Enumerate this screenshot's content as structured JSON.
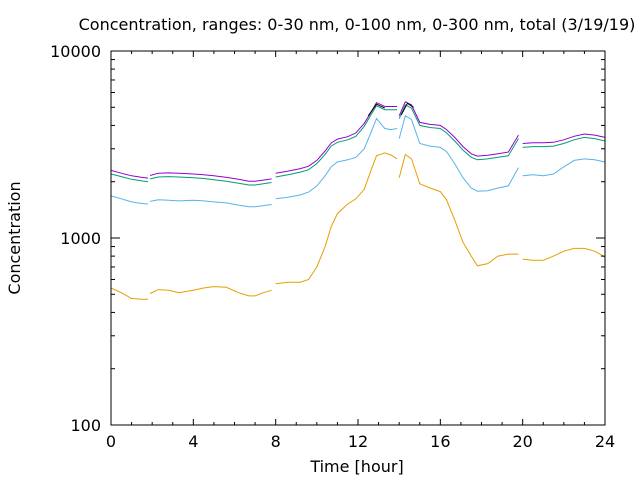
{
  "chart_data": {
    "type": "line",
    "title": "Concentration, ranges: 0-30 nm, 0-100 nm, 0-300 nm, total (3/19/19)",
    "xlabel": "Time [hour]",
    "ylabel": "Concentration",
    "xlim": [
      0,
      24
    ],
    "ylim": [
      100,
      10000
    ],
    "yscale": "log",
    "grid": false,
    "legend": "none",
    "x_ticks": [
      0,
      4,
      8,
      12,
      16,
      20,
      24
    ],
    "x_tick_labels": [
      "0",
      "4",
      "8",
      "12",
      "16",
      "20",
      "24"
    ],
    "y_ticks": [
      100,
      1000,
      10000
    ],
    "y_tick_labels": [
      "100",
      "1000",
      "10000"
    ],
    "series": [
      {
        "color": "#e69f00",
        "segments": [
          [
            [
              0,
              540
            ],
            [
              0.5,
              510
            ],
            [
              1,
              475
            ],
            [
              1.5,
              470
            ],
            [
              1.8,
              470
            ]
          ],
          [
            [
              1.9,
              505
            ],
            [
              2.3,
              530
            ],
            [
              2.8,
              525
            ],
            [
              3.3,
              510
            ],
            [
              4,
              525
            ],
            [
              4.5,
              540
            ],
            [
              5,
              550
            ],
            [
              5.6,
              545
            ],
            [
              6.2,
              510
            ],
            [
              6.7,
              490
            ],
            [
              7,
              490
            ],
            [
              7.4,
              510
            ],
            [
              7.8,
              525
            ]
          ],
          [
            [
              8,
              570
            ],
            [
              8.6,
              580
            ],
            [
              9.2,
              580
            ],
            [
              9.6,
              600
            ],
            [
              10,
              700
            ],
            [
              10.4,
              900
            ],
            [
              10.7,
              1150
            ],
            [
              11,
              1350
            ],
            [
              11.5,
              1520
            ],
            [
              11.9,
              1620
            ],
            [
              12.3,
              1820
            ],
            [
              12.6,
              2250
            ],
            [
              12.9,
              2750
            ],
            [
              13.3,
              2850
            ],
            [
              13.6,
              2780
            ],
            [
              13.9,
              2650
            ]
          ],
          [
            [
              14,
              2100
            ],
            [
              14.3,
              2800
            ],
            [
              14.6,
              2650
            ],
            [
              15,
              1950
            ],
            [
              15.5,
              1850
            ],
            [
              16,
              1770
            ],
            [
              16.3,
              1600
            ],
            [
              16.7,
              1250
            ],
            [
              17.1,
              950
            ],
            [
              17.5,
              800
            ],
            [
              17.8,
              710
            ],
            [
              18.3,
              730
            ],
            [
              18.8,
              800
            ],
            [
              19.3,
              820
            ],
            [
              19.8,
              820
            ]
          ],
          [
            [
              20,
              770
            ],
            [
              20.5,
              760
            ],
            [
              21,
              760
            ],
            [
              21.5,
              800
            ],
            [
              22,
              850
            ],
            [
              22.5,
              880
            ],
            [
              23,
              880
            ],
            [
              23.5,
              850
            ],
            [
              24,
              790
            ]
          ]
        ]
      },
      {
        "color": "#56b4e9",
        "segments": [
          [
            [
              0,
              1680
            ],
            [
              0.5,
              1620
            ],
            [
              1,
              1560
            ],
            [
              1.5,
              1530
            ],
            [
              1.8,
              1520
            ]
          ],
          [
            [
              1.9,
              1570
            ],
            [
              2.3,
              1600
            ],
            [
              2.8,
              1590
            ],
            [
              3.3,
              1580
            ],
            [
              4,
              1590
            ],
            [
              4.5,
              1580
            ],
            [
              5,
              1560
            ],
            [
              5.6,
              1540
            ],
            [
              6.2,
              1500
            ],
            [
              6.7,
              1470
            ],
            [
              7,
              1470
            ],
            [
              7.4,
              1490
            ],
            [
              7.8,
              1510
            ]
          ],
          [
            [
              8,
              1620
            ],
            [
              8.6,
              1650
            ],
            [
              9.2,
              1700
            ],
            [
              9.6,
              1760
            ],
            [
              10,
              1900
            ],
            [
              10.4,
              2150
            ],
            [
              10.7,
              2400
            ],
            [
              11,
              2550
            ],
            [
              11.5,
              2620
            ],
            [
              11.9,
              2700
            ],
            [
              12.3,
              3000
            ],
            [
              12.6,
              3600
            ],
            [
              12.9,
              4350
            ],
            [
              13.3,
              3850
            ],
            [
              13.6,
              3800
            ],
            [
              13.9,
              3850
            ]
          ],
          [
            [
              14,
              3400
            ],
            [
              14.3,
              4500
            ],
            [
              14.6,
              4300
            ],
            [
              15,
              3200
            ],
            [
              15.5,
              3100
            ],
            [
              16,
              3050
            ],
            [
              16.3,
              2900
            ],
            [
              16.7,
              2500
            ],
            [
              17.1,
              2100
            ],
            [
              17.5,
              1850
            ],
            [
              17.8,
              1780
            ],
            [
              18.3,
              1790
            ],
            [
              18.8,
              1850
            ],
            [
              19.3,
              1900
            ],
            [
              19.8,
              2380
            ]
          ],
          [
            [
              20,
              2150
            ],
            [
              20.5,
              2180
            ],
            [
              21,
              2150
            ],
            [
              21.5,
              2200
            ],
            [
              22,
              2400
            ],
            [
              22.5,
              2600
            ],
            [
              23,
              2650
            ],
            [
              23.5,
              2620
            ],
            [
              24,
              2550
            ]
          ]
        ]
      },
      {
        "color": "#009e73",
        "segments": [
          [
            [
              0,
              2200
            ],
            [
              0.5,
              2130
            ],
            [
              1,
              2060
            ],
            [
              1.5,
              2020
            ],
            [
              1.8,
              2000
            ]
          ],
          [
            [
              1.9,
              2070
            ],
            [
              2.3,
              2120
            ],
            [
              2.8,
              2130
            ],
            [
              3.3,
              2120
            ],
            [
              4,
              2100
            ],
            [
              4.5,
              2080
            ],
            [
              5,
              2050
            ],
            [
              5.6,
              2010
            ],
            [
              6.2,
              1960
            ],
            [
              6.7,
              1920
            ],
            [
              7,
              1920
            ],
            [
              7.4,
              1950
            ],
            [
              7.8,
              1980
            ]
          ],
          [
            [
              8,
              2120
            ],
            [
              8.6,
              2180
            ],
            [
              9.2,
              2250
            ],
            [
              9.6,
              2320
            ],
            [
              10,
              2500
            ],
            [
              10.4,
              2800
            ],
            [
              10.7,
              3100
            ],
            [
              11,
              3250
            ],
            [
              11.5,
              3350
            ],
            [
              11.9,
              3500
            ],
            [
              12.3,
              3950
            ],
            [
              12.6,
              4500
            ],
            [
              12.9,
              5100
            ],
            [
              13.3,
              4850
            ],
            [
              13.6,
              4850
            ],
            [
              13.9,
              4850
            ]
          ],
          [
            [
              14,
              4350
            ],
            [
              14.3,
              5150
            ],
            [
              14.6,
              4950
            ],
            [
              15,
              4000
            ],
            [
              15.5,
              3900
            ],
            [
              16,
              3850
            ],
            [
              16.3,
              3650
            ],
            [
              16.7,
              3300
            ],
            [
              17.1,
              2950
            ],
            [
              17.5,
              2700
            ],
            [
              17.8,
              2620
            ],
            [
              18.3,
              2650
            ],
            [
              18.8,
              2700
            ],
            [
              19.3,
              2750
            ],
            [
              19.8,
              3400
            ]
          ],
          [
            [
              20,
              3050
            ],
            [
              20.5,
              3080
            ],
            [
              21,
              3080
            ],
            [
              21.5,
              3100
            ],
            [
              22,
              3200
            ],
            [
              22.5,
              3350
            ],
            [
              23,
              3450
            ],
            [
              23.5,
              3400
            ],
            [
              24,
              3300
            ]
          ]
        ]
      },
      {
        "color": "#9400d3",
        "segments": [
          [
            [
              0,
              2300
            ],
            [
              0.5,
              2220
            ],
            [
              1,
              2150
            ],
            [
              1.5,
              2110
            ],
            [
              1.8,
              2090
            ]
          ],
          [
            [
              1.9,
              2160
            ],
            [
              2.3,
              2220
            ],
            [
              2.8,
              2230
            ],
            [
              3.3,
              2220
            ],
            [
              4,
              2200
            ],
            [
              4.5,
              2180
            ],
            [
              5,
              2150
            ],
            [
              5.6,
              2110
            ],
            [
              6.2,
              2060
            ],
            [
              6.7,
              2010
            ],
            [
              7,
              2010
            ],
            [
              7.4,
              2040
            ],
            [
              7.8,
              2070
            ]
          ],
          [
            [
              8,
              2220
            ],
            [
              8.6,
              2280
            ],
            [
              9.2,
              2350
            ],
            [
              9.6,
              2420
            ],
            [
              10,
              2600
            ],
            [
              10.4,
              2920
            ],
            [
              10.7,
              3220
            ],
            [
              11,
              3380
            ],
            [
              11.5,
              3480
            ],
            [
              11.9,
              3650
            ],
            [
              12.3,
              4100
            ],
            [
              12.6,
              4650
            ],
            [
              12.9,
              5300
            ],
            [
              13.3,
              5050
            ],
            [
              13.6,
              5050
            ],
            [
              13.9,
              5050
            ]
          ],
          [
            [
              14,
              4500
            ],
            [
              14.3,
              5350
            ],
            [
              14.6,
              5150
            ],
            [
              15,
              4150
            ],
            [
              15.5,
              4050
            ],
            [
              16,
              4000
            ],
            [
              16.3,
              3800
            ],
            [
              16.7,
              3450
            ],
            [
              17.1,
              3080
            ],
            [
              17.5,
              2820
            ],
            [
              17.8,
              2740
            ],
            [
              18.3,
              2770
            ],
            [
              18.8,
              2820
            ],
            [
              19.3,
              2880
            ],
            [
              19.8,
              3550
            ]
          ],
          [
            [
              20,
              3200
            ],
            [
              20.5,
              3230
            ],
            [
              21,
              3230
            ],
            [
              21.5,
              3250
            ],
            [
              22,
              3350
            ],
            [
              22.5,
              3500
            ],
            [
              23,
              3600
            ],
            [
              23.5,
              3550
            ],
            [
              24,
              3450
            ]
          ]
        ]
      },
      {
        "color": "#000000",
        "segments": [
          [
            [
              12.5,
              4500
            ],
            [
              12.9,
              5200
            ],
            [
              13.3,
              4950
            ]
          ],
          [
            [
              14.1,
              4550
            ],
            [
              14.4,
              5250
            ],
            [
              14.7,
              5000
            ]
          ]
        ]
      }
    ]
  }
}
